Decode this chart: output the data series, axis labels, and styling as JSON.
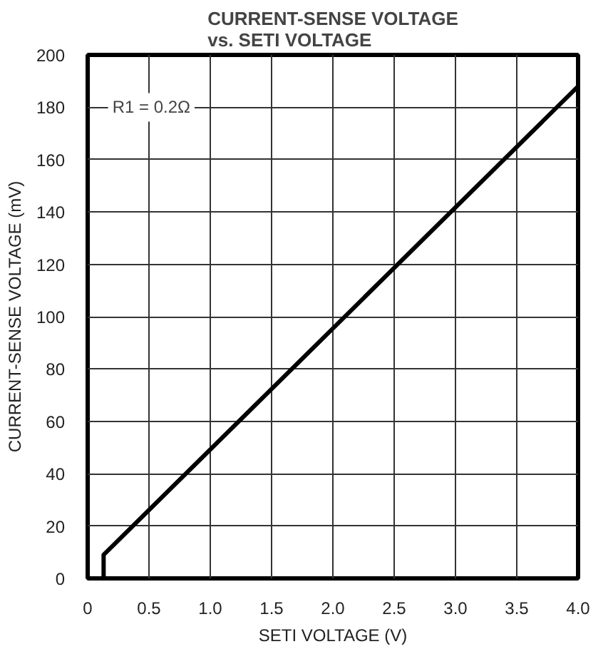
{
  "chart_data": {
    "type": "line",
    "title": "CURRENT-SENSE VOLTAGE\nvs. SETI VOLTAGE",
    "xlabel": "SETI VOLTAGE (V)",
    "ylabel": "CURRENT-SENSE VOLTAGE (mV)",
    "annotations": [
      "R1 = 0.2Ω"
    ],
    "x": [
      0,
      0.13,
      0.13,
      4.0
    ],
    "series": [
      {
        "color": "#000000",
        "values": [
          0,
          0,
          9,
          188
        ]
      }
    ],
    "xlim": [
      0,
      4.0
    ],
    "ylim": [
      0,
      200
    ],
    "xticks": [
      0,
      0.5,
      {
        "value": 1,
        "label": "1.0"
      },
      1.5,
      {
        "value": 2,
        "label": "2.0"
      },
      2.5,
      {
        "value": 3,
        "label": "3.0"
      },
      3.5,
      {
        "value": 4,
        "label": "4.0"
      }
    ],
    "yticks": [
      0,
      20,
      40,
      60,
      80,
      100,
      120,
      140,
      160,
      180,
      200
    ],
    "grid": true,
    "marker": "none",
    "line_style": "solid"
  }
}
